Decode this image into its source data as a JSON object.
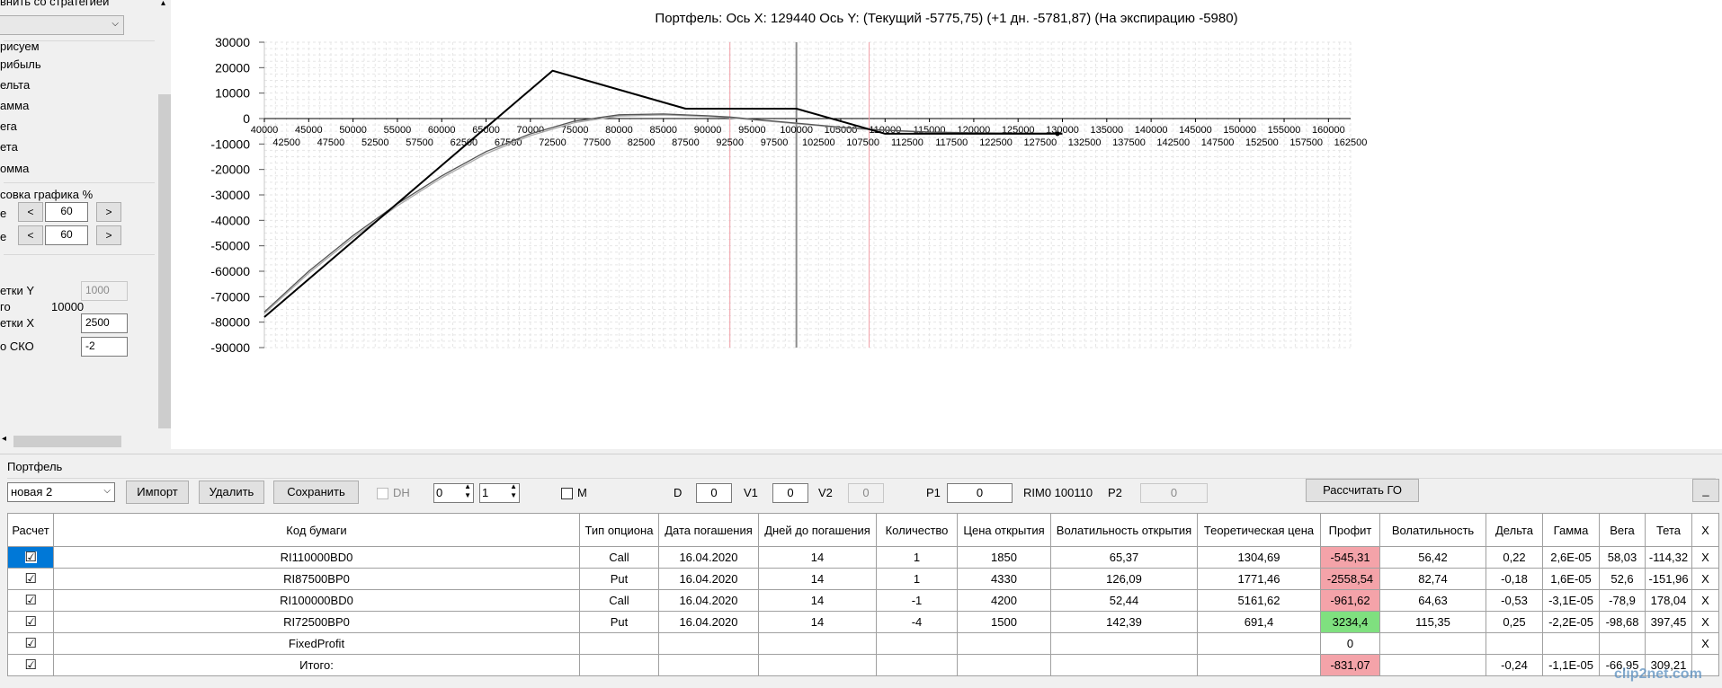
{
  "left": {
    "compare_label": "внить со стратегией",
    "draw_label": "рисуем",
    "draw_items": [
      "рибыль",
      "ельта",
      "амма",
      "ега",
      "ета",
      "омма"
    ],
    "scale_label": "совка графика %",
    "scale_rows": [
      {
        "label": "е",
        "dec": "<",
        "value": "60",
        "inc": ">"
      },
      {
        "label": "е",
        "dec": "<",
        "value": "60",
        "inc": ">"
      }
    ],
    "grid_y_label": "етки Y",
    "grid_y_value": "1000",
    "go_label": "го",
    "go_value": "10000",
    "grid_x_label": "етки X",
    "grid_x_value": "2500",
    "sko_label": "о СКО",
    "sko_value": "-2"
  },
  "chart_data": {
    "type": "line",
    "title": "Портфель: Ось X: 129440 Ось Y:  (Текущий -5775,75)  (+1 дн. -5781,87)  (На экспирацию -5980)",
    "xlim": [
      40000,
      162500
    ],
    "ylim": [
      -90000,
      30000
    ],
    "x_ticks_upper": [
      40000,
      45000,
      50000,
      55000,
      60000,
      65000,
      70000,
      75000,
      80000,
      85000,
      90000,
      95000,
      100000,
      105000,
      110000,
      115000,
      120000,
      125000,
      130000,
      135000,
      140000,
      145000,
      150000,
      155000,
      160000
    ],
    "x_ticks_lower": [
      42500,
      47500,
      52500,
      57500,
      62500,
      67500,
      72500,
      77500,
      82500,
      87500,
      92500,
      97500,
      102500,
      107500,
      112500,
      117500,
      122500,
      127500,
      132500,
      137500,
      142500,
      147500,
      152500,
      157500,
      162500
    ],
    "y_ticks": [
      30000,
      20000,
      10000,
      0,
      -10000,
      -20000,
      -30000,
      -40000,
      -50000,
      -60000,
      -70000,
      -80000,
      -90000
    ],
    "vlines": [
      {
        "x": 92500,
        "color": "#f2a0a8"
      },
      {
        "x": 100000,
        "color": "#8c8c8c"
      },
      {
        "x": 108200,
        "color": "#f2a0a8"
      }
    ],
    "series": [
      {
        "name": "",
        "color": "#000000",
        "x": [
          40000,
          72500,
          87500,
          100000,
          107600,
          110000,
          130000
        ],
        "y": [
          -78000,
          18800,
          3900,
          3900,
          -3600,
          -5980,
          -5980
        ]
      },
      {
        "name": "",
        "color": "#555555",
        "x": [
          40000,
          45000,
          50000,
          55000,
          60000,
          65000,
          70000,
          75000,
          80000,
          85000,
          90000,
          92500,
          95000,
          100000,
          105000,
          110000,
          115000,
          120000,
          125000,
          130000
        ],
        "y": [
          -76000,
          -60000,
          -46000,
          -33500,
          -22500,
          -13000,
          -6000,
          -1000,
          1500,
          1800,
          1100,
          600,
          -200,
          -1800,
          -3400,
          -4600,
          -5300,
          -5600,
          -5750,
          -5775
        ]
      },
      {
        "name": "",
        "color": "#aaaaaa",
        "x": [
          40000,
          45000,
          50000,
          55000,
          60000,
          65000,
          70000,
          75000,
          80000,
          85000,
          90000,
          92500,
          95000,
          100000,
          105000,
          110000,
          115000,
          120000,
          125000,
          130000
        ],
        "y": [
          -76600,
          -60800,
          -46800,
          -34300,
          -23300,
          -13800,
          -6700,
          -1600,
          1000,
          1400,
          800,
          300,
          -500,
          -2000,
          -3600,
          -4700,
          -5400,
          -5700,
          -5780,
          -5781
        ]
      }
    ],
    "cursor_point": {
      "x": 129440,
      "y": -5980
    }
  },
  "portfolio": {
    "title": "Портфель",
    "combo_value": "новая 2",
    "import_label": "Импорт",
    "delete_label": "Удалить",
    "save_label": "Сохранить",
    "dh_label": "DH",
    "spin1_value": "0",
    "spin2_value": "1",
    "m_label": "M",
    "d_label": "D",
    "d_value": "0",
    "v1_label": "V1",
    "v1_value": "0",
    "v2_label": "V2",
    "v2_value": "0",
    "p1_label": "P1",
    "p1_value": "0",
    "rim_label": "RIM0 100110",
    "p2_label": "P2",
    "p2_value": "0",
    "calc_go_label": "Рассчитать ГО",
    "minimize_label": "_",
    "columns": [
      "Расчет",
      "Код бумаги",
      "Тип опциона",
      "Дата погашения",
      "Дней до погашения",
      "Количество",
      "Цена открытия",
      "Волатильность открытия",
      "Теоретическая цена",
      "Профит",
      "Волатильность",
      "Дельта",
      "Гамма",
      "Вега",
      "Тета",
      "X"
    ],
    "rows": [
      {
        "code": "RI110000BD0",
        "type": "Call",
        "date": "16.04.2020",
        "days": "14",
        "qty": "1",
        "price": "1850",
        "vol_open": "65,37",
        "theo": "1304,69",
        "profit": "-545,31",
        "profit_state": "neg",
        "vol": "56,42",
        "delta": "0,22",
        "gamma": "2,6E-05",
        "vega": "58,03",
        "theta": "-114,32",
        "x": "X",
        "selected": true
      },
      {
        "code": "RI87500BP0",
        "type": "Put",
        "date": "16.04.2020",
        "days": "14",
        "qty": "1",
        "price": "4330",
        "vol_open": "126,09",
        "theo": "1771,46",
        "profit": "-2558,54",
        "profit_state": "neg",
        "vol": "82,74",
        "delta": "-0,18",
        "gamma": "1,6E-05",
        "vega": "52,6",
        "theta": "-151,96",
        "x": "X",
        "selected": false
      },
      {
        "code": "RI100000BD0",
        "type": "Call",
        "date": "16.04.2020",
        "days": "14",
        "qty": "-1",
        "price": "4200",
        "vol_open": "52,44",
        "theo": "5161,62",
        "profit": "-961,62",
        "profit_state": "neg",
        "vol": "64,63",
        "delta": "-0,53",
        "gamma": "-3,1E-05",
        "vega": "-78,9",
        "theta": "178,04",
        "x": "X",
        "selected": false
      },
      {
        "code": "RI72500BP0",
        "type": "Put",
        "date": "16.04.2020",
        "days": "14",
        "qty": "-4",
        "price": "1500",
        "vol_open": "142,39",
        "theo": "691,4",
        "profit": "3234,4",
        "profit_state": "pos",
        "vol": "115,35",
        "delta": "0,25",
        "gamma": "-2,2E-05",
        "vega": "-98,68",
        "theta": "397,45",
        "x": "X",
        "selected": false
      },
      {
        "code": "FixedProfit",
        "type": "",
        "date": "",
        "days": "",
        "qty": "",
        "price": "",
        "vol_open": "",
        "theo": "",
        "profit": "0",
        "profit_state": "",
        "vol": "",
        "delta": "",
        "gamma": "",
        "vega": "",
        "theta": "",
        "x": "X",
        "selected": false
      },
      {
        "code": "Итого:",
        "type": "",
        "date": "",
        "days": "",
        "qty": "",
        "price": "",
        "vol_open": "",
        "theo": "",
        "profit": "-831,07",
        "profit_state": "neg",
        "vol": "",
        "delta": "-0,24",
        "gamma": "-1,1E-05",
        "vega": "-66,95",
        "theta": "309,21",
        "x": "",
        "selected": false
      }
    ],
    "check_mark": "☑"
  },
  "watermark": "clip2net.com"
}
